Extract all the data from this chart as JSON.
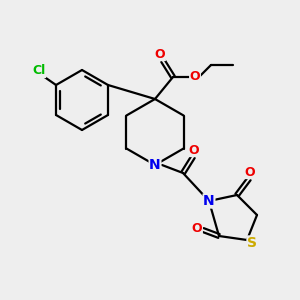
{
  "bg_color": "#eeeeee",
  "bond_color": "#000000",
  "atom_colors": {
    "Cl": "#00bb00",
    "O": "#ee0000",
    "N": "#0000ee",
    "S": "#ccaa00",
    "C": "#000000"
  },
  "figsize": [
    3.0,
    3.0
  ],
  "dpi": 100
}
